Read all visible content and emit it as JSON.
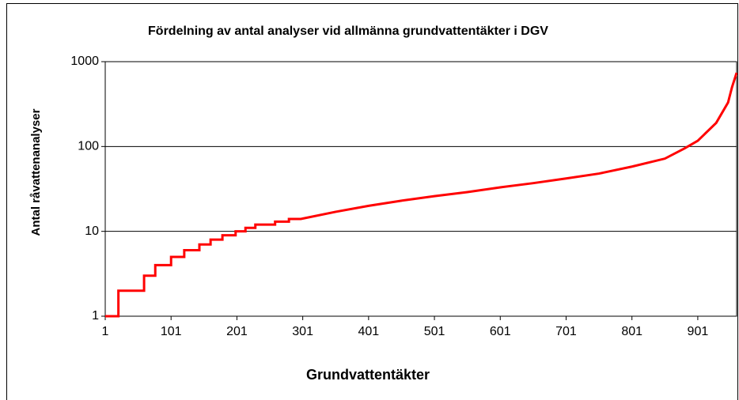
{
  "chart_data": {
    "type": "line",
    "title": "Fördelning av antal analyser vid allmänna grundvattentäkter i DGV",
    "x_label": "Grundvattentäkter",
    "y_label": "Antal råvattenanalyser",
    "x": [
      1,
      21,
      21,
      60,
      60,
      77,
      77,
      101,
      101,
      121,
      121,
      144,
      144,
      161,
      161,
      179,
      179,
      199,
      199,
      214,
      214,
      229,
      229,
      259,
      259,
      280,
      280,
      298,
      351,
      401,
      451,
      501,
      551,
      601,
      651,
      701,
      751,
      801,
      851,
      881,
      901,
      929,
      947,
      953,
      960
    ],
    "series": [
      {
        "name": "Antal råvattenanalyser",
        "color": "#ff0000",
        "values": [
          1,
          1,
          2,
          2,
          3,
          3,
          4,
          4,
          5,
          5,
          6,
          6,
          7,
          7,
          8,
          8,
          9,
          9,
          10,
          10,
          11,
          11,
          12,
          12,
          13,
          13,
          14,
          14,
          17,
          20,
          23,
          26,
          29,
          33,
          37,
          42,
          48,
          58,
          72,
          95,
          117,
          190,
          330,
          500,
          740
        ]
      }
    ],
    "xlim": [
      1,
      960
    ],
    "ylim": [
      1,
      1000
    ],
    "xticks": [
      1,
      101,
      201,
      301,
      401,
      501,
      601,
      701,
      801,
      901
    ],
    "yticks": [
      1,
      10,
      100,
      1000
    ],
    "y_log": true,
    "grid": true
  }
}
